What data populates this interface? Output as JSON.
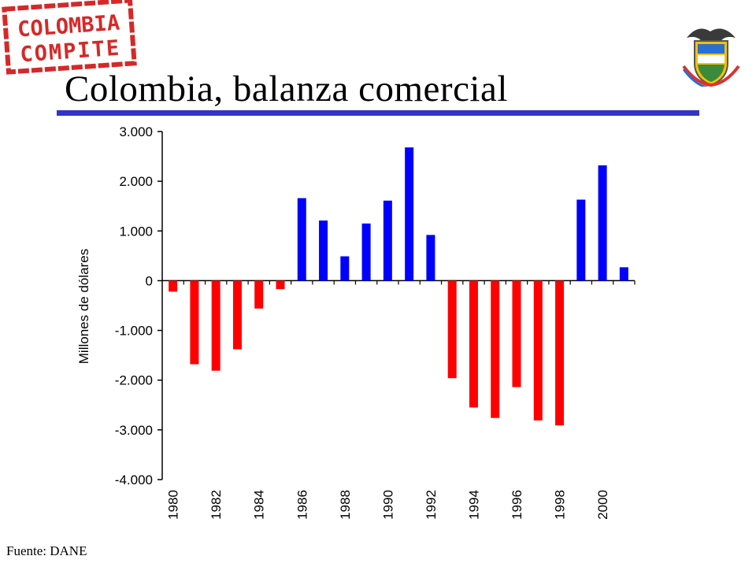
{
  "logo": {
    "line1": "COLOMBIA",
    "line2": "COMPITE"
  },
  "title": "Colombia, balanza comercial",
  "source": "Fuente: DANE",
  "colors": {
    "positive": "#0000ff",
    "negative": "#ff0000",
    "title_rule": "#3333cc",
    "logo_red": "#d62828"
  },
  "chart_data": {
    "type": "bar",
    "title": "",
    "xlabel": "",
    "ylabel": "Millones de dólares",
    "ylim": [
      -4000,
      3000
    ],
    "yticks": [
      3000,
      2000,
      1000,
      0,
      -1000,
      -2000,
      -3000,
      -4000
    ],
    "ytick_labels": [
      "3.000",
      "2.000",
      "1.000",
      "0",
      "-1.000",
      "-2.000",
      "-3.000",
      "-4.000"
    ],
    "categories": [
      "1980",
      "1981",
      "1982",
      "1983",
      "1984",
      "1985",
      "1986",
      "1987",
      "1988",
      "1989",
      "1990",
      "1991",
      "1992",
      "1993",
      "1994",
      "1995",
      "1996",
      "1997",
      "1998",
      "1999",
      "2000",
      "2001"
    ],
    "xtick_labels": [
      "1980",
      "",
      "1982",
      "",
      "1984",
      "",
      "1986",
      "",
      "1988",
      "",
      "1990",
      "",
      "1992",
      "",
      "1994",
      "",
      "1996",
      "",
      "1998",
      "",
      "2000",
      ""
    ],
    "values": [
      -220,
      -1680,
      -1810,
      -1380,
      -560,
      -170,
      1660,
      1210,
      490,
      1150,
      1610,
      2680,
      920,
      -1960,
      -2550,
      -2760,
      -2140,
      -2810,
      -2910,
      1630,
      2320,
      270
    ],
    "grid": false,
    "legend": "none"
  }
}
